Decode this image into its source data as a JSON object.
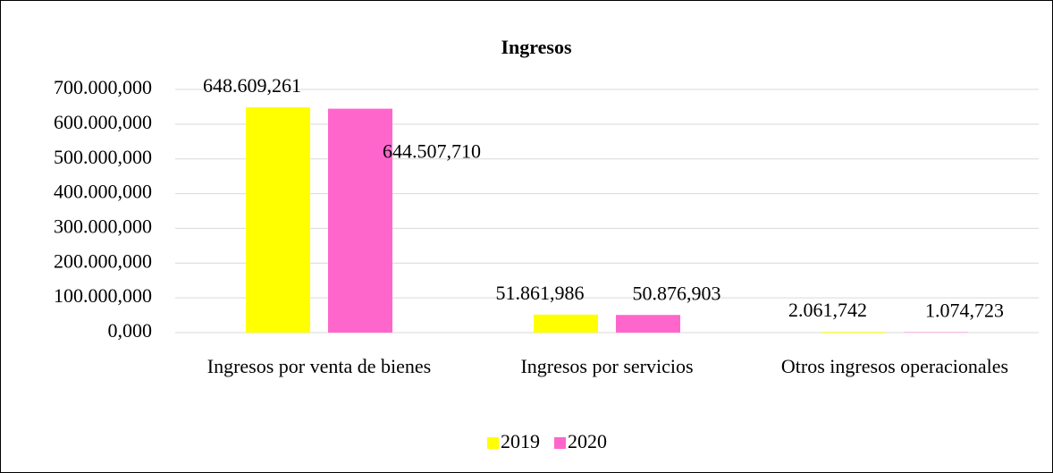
{
  "chart_data": {
    "type": "bar",
    "title": "Ingresos",
    "categories": [
      "Ingresos por venta de bienes",
      "Ingresos por servicios",
      "Otros ingresos operacionales"
    ],
    "series": [
      {
        "name": "2019",
        "color": "#ffff00",
        "values": [
          648609.261,
          51861.986,
          2061.742
        ],
        "value_labels": [
          "648.609,261",
          "51.861,986",
          "2.061,742"
        ]
      },
      {
        "name": "2020",
        "color": "#ff66cc",
        "values": [
          644507.71,
          50876.903,
          1074.723
        ],
        "value_labels": [
          "644.507,710",
          "50.876,903",
          "1.074,723"
        ]
      }
    ],
    "ylim": [
      0,
      700000
    ],
    "yticks": [
      {
        "value": 0,
        "label": "0,000"
      },
      {
        "value": 100000,
        "label": "100.000,000"
      },
      {
        "value": 200000,
        "label": "200.000,000"
      },
      {
        "value": 300000,
        "label": "300.000,000"
      },
      {
        "value": 400000,
        "label": "400.000,000"
      },
      {
        "value": 500000,
        "label": "500.000,000"
      },
      {
        "value": 600000,
        "label": "600.000,000"
      },
      {
        "value": 700000,
        "label": "700.000,000"
      }
    ],
    "grid": true,
    "legend": "bottom"
  }
}
